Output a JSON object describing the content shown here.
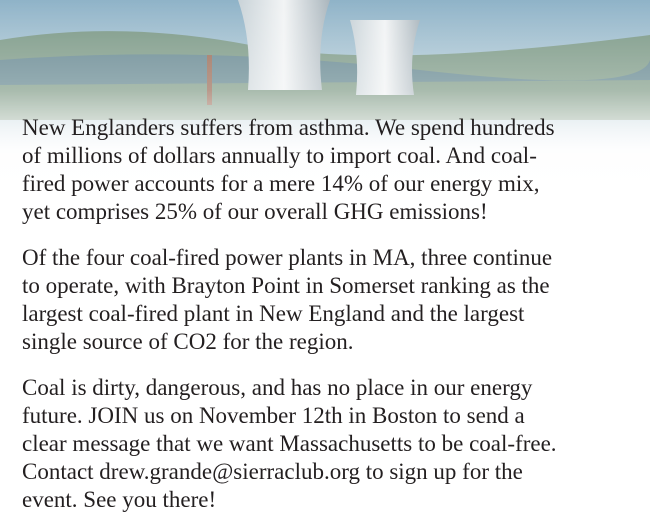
{
  "paragraphs": [
    {
      "lines": [
        "New Englanders suffers from asthma. We spend hundreds",
        "of millions of dollars annually to import coal. And coal-",
        "fired power accounts for a mere 14% of our energy mix,",
        "yet comprises 25% of our overall GHG emissions!"
      ]
    },
    {
      "lines": [
        "Of the four coal-fired power plants in MA, three continue",
        "to operate, with Brayton Point in Somerset ranking as the",
        "largest coal-fired plant in New England and the largest",
        "single source of CO2 for the region."
      ]
    },
    {
      "lines": [
        "Coal is dirty, dangerous, and has no place in our energy",
        "future. JOIN us on November 12th in Boston to send a",
        "clear message that we want Massachusetts to be coal-free.",
        "Contact drew.grande@sierraclub.org to sign up for the",
        "event. See you there!"
      ]
    }
  ]
}
